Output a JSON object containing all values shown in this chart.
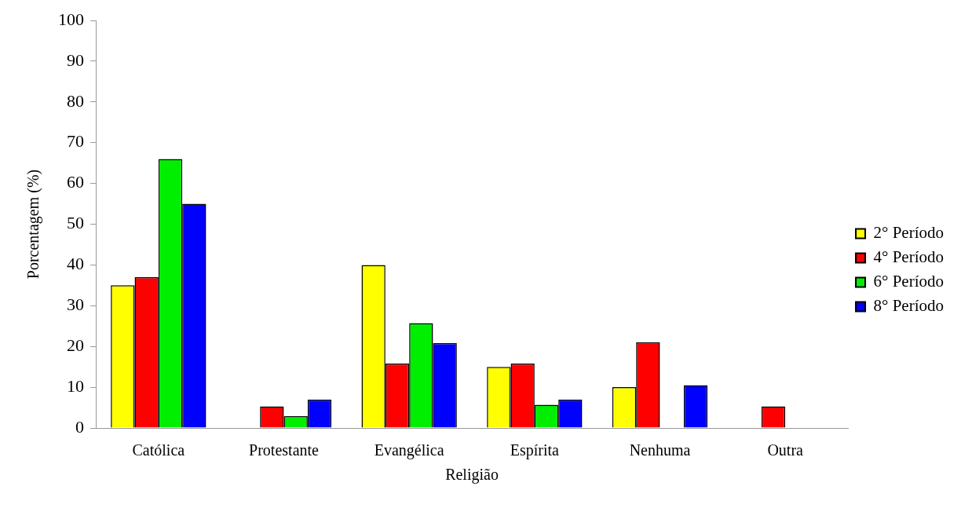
{
  "chart_data": {
    "type": "bar",
    "xlabel": "Religião",
    "ylabel": "Porcentagem (%)",
    "categories": [
      "Católica",
      "Protestante",
      "Evangélica",
      "Espírita",
      "Nenhuma",
      "Outra"
    ],
    "series": [
      {
        "name": "2° Período",
        "color": "#ffff00",
        "values": [
          35,
          null,
          40,
          15,
          10,
          null
        ]
      },
      {
        "name": "4° Período",
        "color": "#ff0000",
        "values": [
          37,
          5.3,
          15.8,
          15.8,
          21,
          5.3
        ]
      },
      {
        "name": "6° Período",
        "color": "#00ee00",
        "values": [
          66,
          2.9,
          25.7,
          5.7,
          null,
          null
        ]
      },
      {
        "name": "8° Período",
        "color": "#0000ff",
        "values": [
          55,
          7,
          20.8,
          7,
          10.5,
          null
        ]
      }
    ],
    "ylim": [
      0,
      100
    ],
    "yticks": [
      0,
      10,
      20,
      30,
      40,
      50,
      60,
      70,
      80,
      90,
      100
    ],
    "legend": "right"
  }
}
